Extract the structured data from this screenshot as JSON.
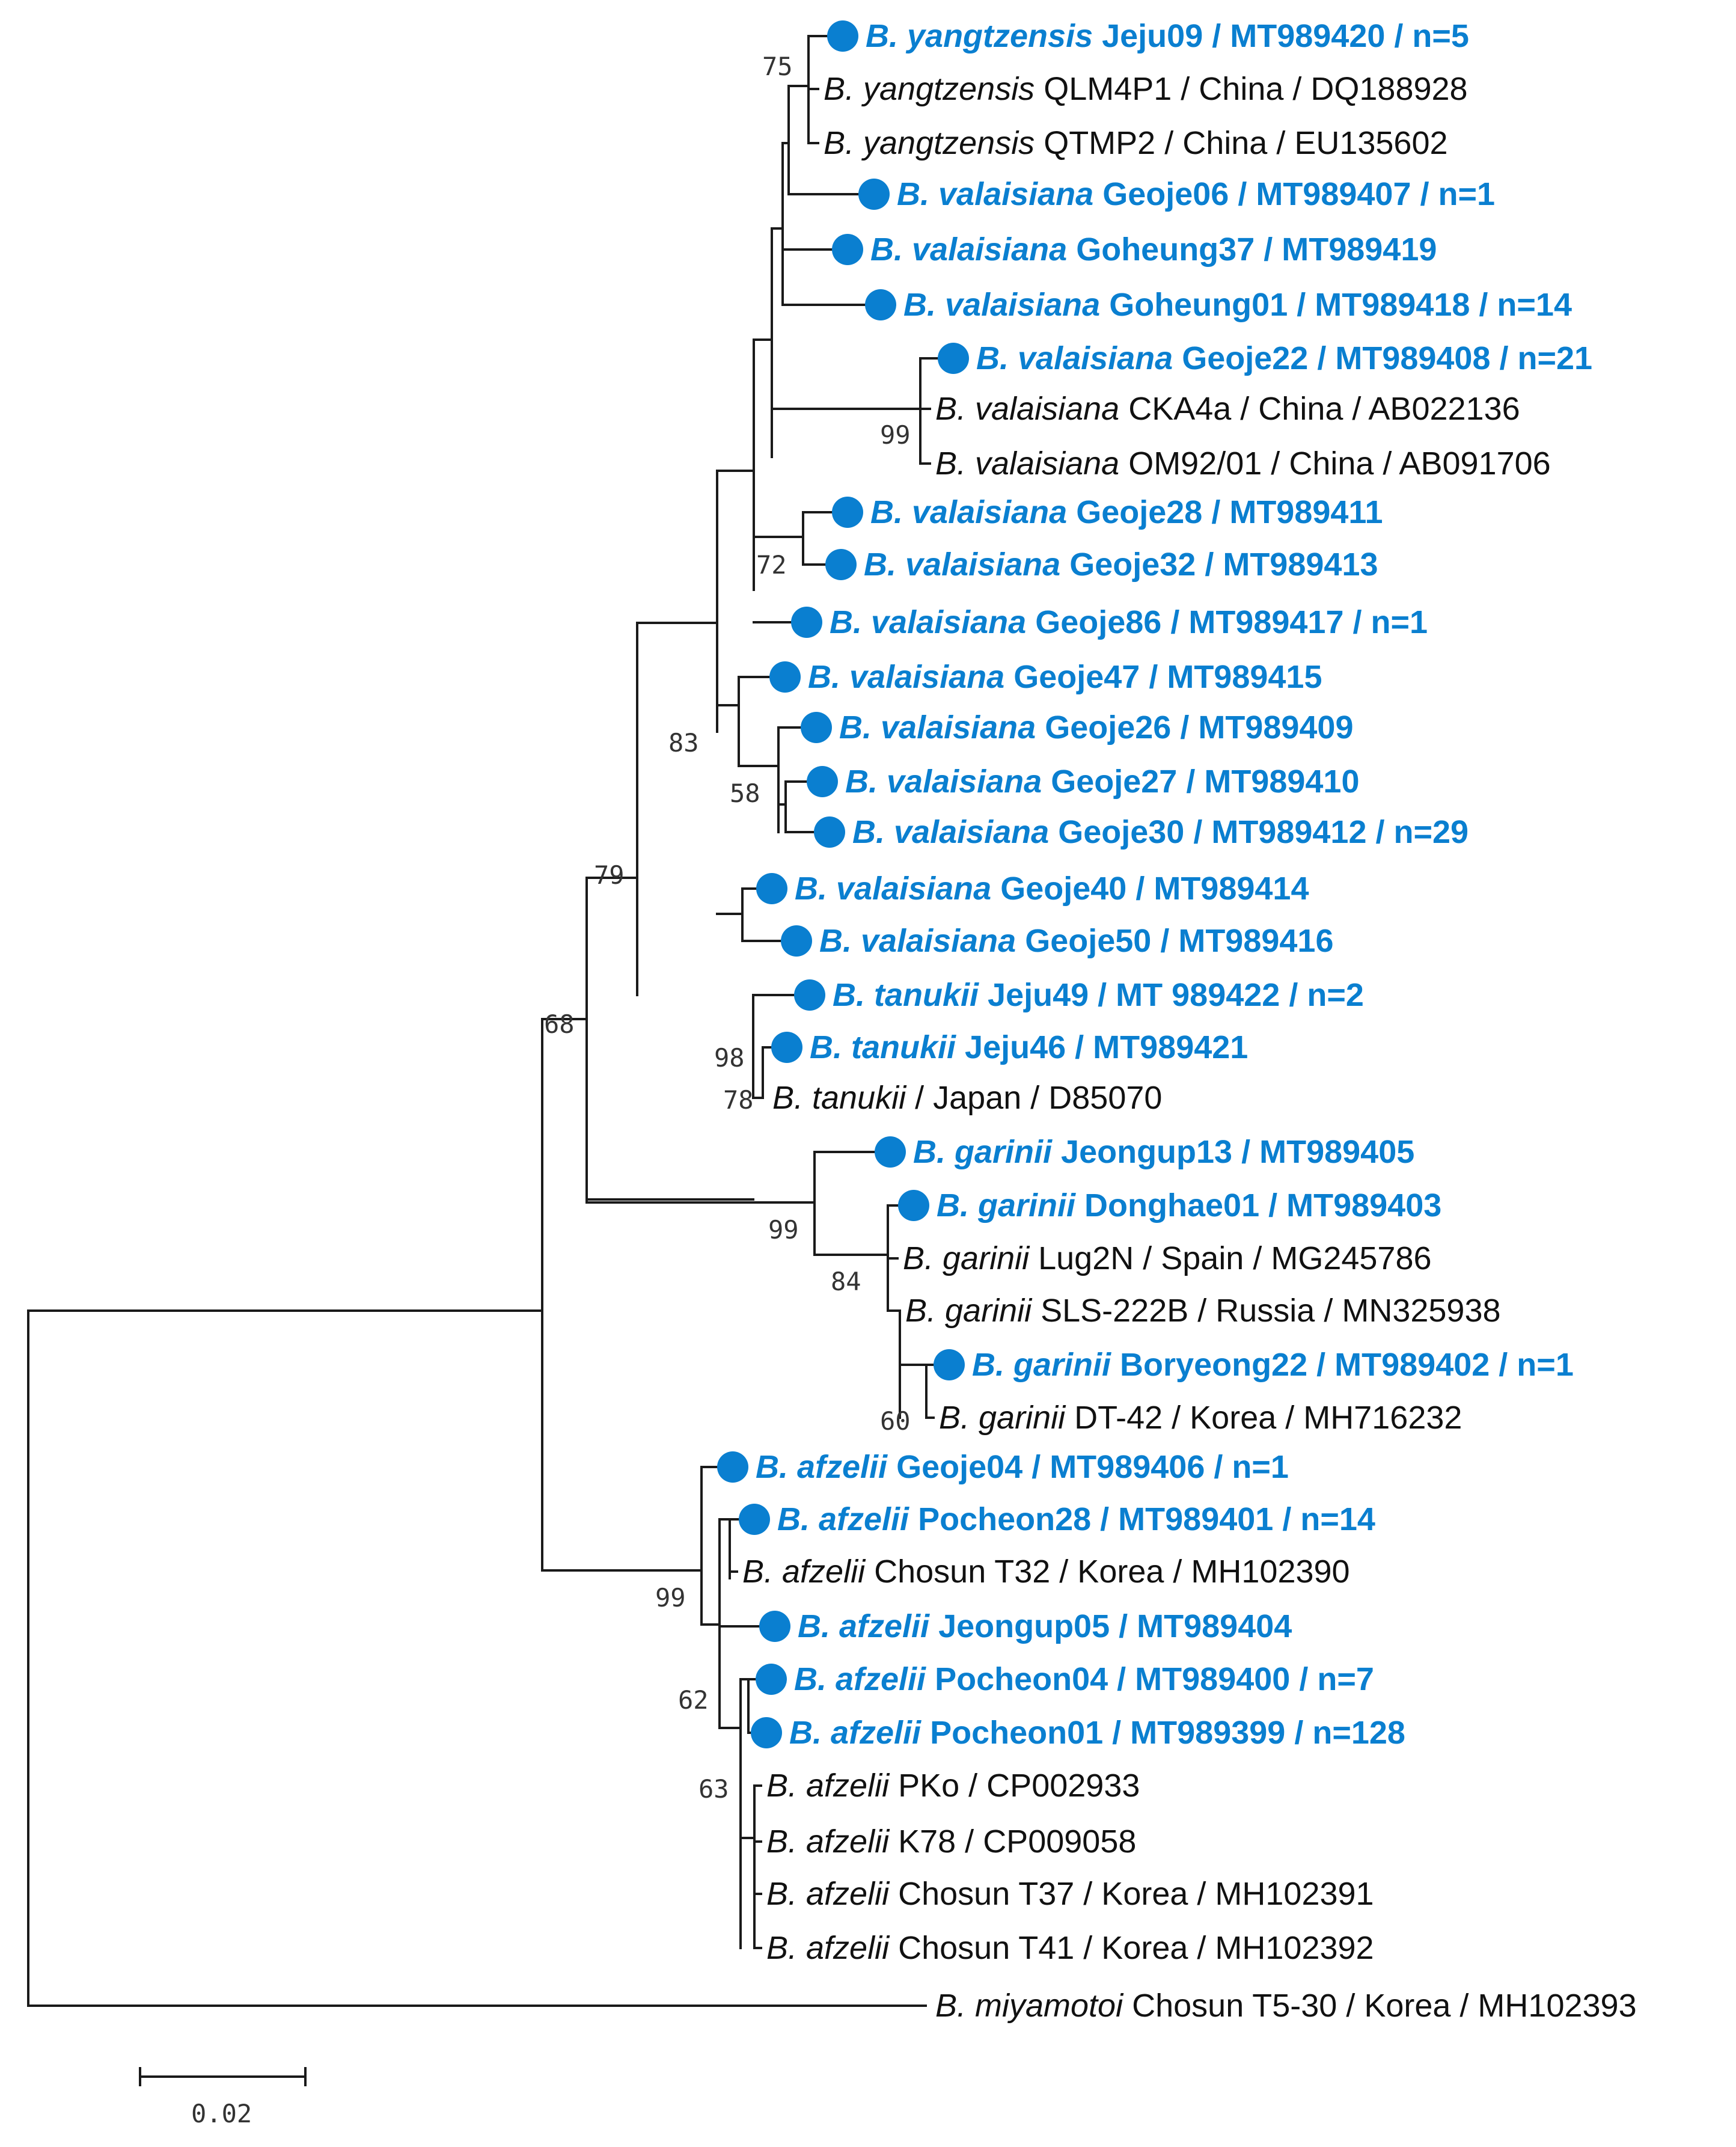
{
  "title": "",
  "colors": {
    "branch": "#1a1a1a",
    "korean_isolate": "#0a7fd0",
    "reference": "#111111"
  },
  "legend_marker_icon": "filled-circle",
  "taxa": {
    "t01": {
      "species": "B. yangtzensis",
      "label": " Jeju09 / MT989420 / n=5",
      "korean": true
    },
    "t02": {
      "species": "B. yangtzensis",
      "label": " QLM4P1 / China / DQ188928",
      "korean": false
    },
    "t03": {
      "species": "B. yangtzensis",
      "label": " QTMP2 / China / EU135602",
      "korean": false
    },
    "t04": {
      "species": "B. valaisiana",
      "label": " Geoje06 / MT989407 / n=1",
      "korean": true
    },
    "t05": {
      "species": "B. valaisiana",
      "label": " Goheung37 / MT989419",
      "korean": true
    },
    "t06": {
      "species": "B. valaisiana",
      "label": " Goheung01 / MT989418 / n=14",
      "korean": true
    },
    "t07": {
      "species": "B. valaisiana",
      "label": " Geoje22 / MT989408 / n=21",
      "korean": true
    },
    "t08": {
      "species": "B. valaisiana",
      "label": " CKA4a / China / AB022136",
      "korean": false
    },
    "t09": {
      "species": "B. valaisiana",
      "label": " OM92/01 / China / AB091706",
      "korean": false
    },
    "t10": {
      "species": "B. valaisiana",
      "label": " Geoje28 / MT989411",
      "korean": true
    },
    "t11": {
      "species": "B. valaisiana",
      "label": " Geoje32 / MT989413",
      "korean": true
    },
    "t12": {
      "species": "B. valaisiana",
      "label": " Geoje86 / MT989417 / n=1",
      "korean": true
    },
    "t13": {
      "species": "B. valaisiana",
      "label": " Geoje47 / MT989415",
      "korean": true
    },
    "t14": {
      "species": "B. valaisiana",
      "label": " Geoje26 / MT989409",
      "korean": true
    },
    "t15": {
      "species": "B. valaisiana",
      "label": " Geoje27 / MT989410",
      "korean": true
    },
    "t16": {
      "species": "B. valaisiana",
      "label": " Geoje30 / MT989412 / n=29",
      "korean": true
    },
    "t17": {
      "species": "B. valaisiana",
      "label": " Geoje40 / MT989414",
      "korean": true
    },
    "t18": {
      "species": "B. valaisiana",
      "label": " Geoje50 / MT989416",
      "korean": true
    },
    "t19": {
      "species": "B. tanukii",
      "label": " Jeju49 / MT 989422 / n=2",
      "korean": true
    },
    "t20": {
      "species": "B. tanukii",
      "label": " Jeju46 / MT989421",
      "korean": true
    },
    "t21": {
      "species": "B. tanukii",
      "label": " / Japan / D85070",
      "korean": false
    },
    "t22": {
      "species": "B. garinii",
      "label": " Jeongup13 / MT989405",
      "korean": true
    },
    "t23": {
      "species": "B. garinii",
      "label": " Donghae01 / MT989403",
      "korean": true
    },
    "t24": {
      "species": "B. garinii",
      "label": " Lug2N / Spain / MG245786",
      "korean": false
    },
    "t25": {
      "species": "B. garinii",
      "label": " SLS-222B / Russia / MN325938",
      "korean": false
    },
    "t26": {
      "species": "B. garinii",
      "label": " Boryeong22 / MT989402 / n=1",
      "korean": true
    },
    "t27": {
      "species": "B. garinii",
      "label": " DT-42 / Korea / MH716232",
      "korean": false
    },
    "t28": {
      "species": "B. afzelii",
      "label": " Geoje04 / MT989406 / n=1",
      "korean": true
    },
    "t29": {
      "species": "B. afzelii",
      "label": " Pocheon28 / MT989401 / n=14",
      "korean": true
    },
    "t30": {
      "species": "B. afzelii",
      "label": " Chosun T32 / Korea / MH102390",
      "korean": false
    },
    "t31": {
      "species": "B. afzelii",
      "label": " Jeongup05 / MT989404",
      "korean": true
    },
    "t32": {
      "species": "B. afzelii",
      "label": " Pocheon04 / MT989400 / n=7",
      "korean": true
    },
    "t33": {
      "species": "B. afzelii",
      "label": " Pocheon01 / MT989399 / n=128",
      "korean": true
    },
    "t34": {
      "species": "B. afzelii",
      "label": " PKo / CP002933",
      "korean": false
    },
    "t35": {
      "species": "B. afzelii",
      "label": " K78 / CP009058",
      "korean": false
    },
    "t36": {
      "species": "B. afzelii",
      "label": " Chosun T37 / Korea / MH102391",
      "korean": false
    },
    "t37": {
      "species": "B. afzelii",
      "label": " Chosun T41 / Korea / MH102392",
      "korean": false
    },
    "t38": {
      "species": "B. miyamotoi",
      "label": " Chosun T5-30 / Korea / MH102393",
      "korean": false
    }
  },
  "bootstrap": {
    "b75": "75",
    "b99a": "99",
    "b72": "72",
    "b83": "83",
    "b58": "58",
    "b79": "79",
    "b68": "68",
    "b98": "98",
    "b78": "78",
    "b99b": "99",
    "b84": "84",
    "b60": "60",
    "b99c": "99",
    "b62": "62",
    "b63": "63"
  },
  "scale_bar": {
    "label": "0.02",
    "value": 0.02
  }
}
